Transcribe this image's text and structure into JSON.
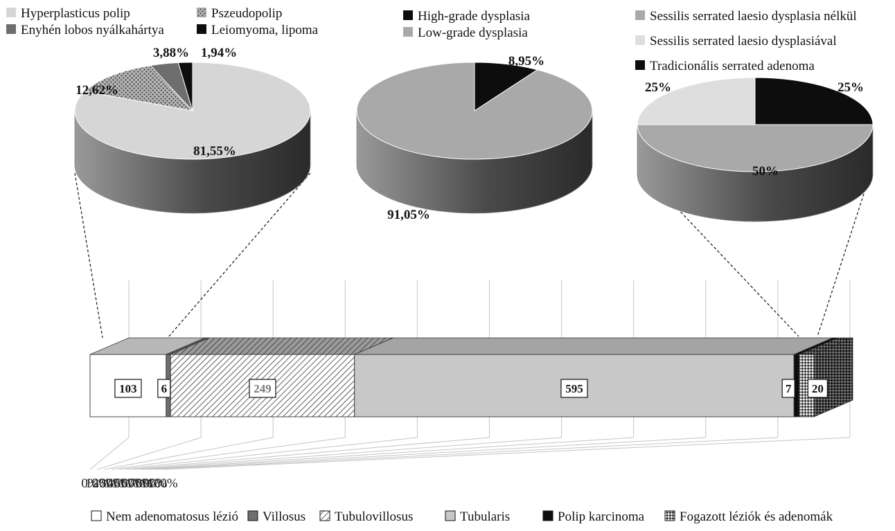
{
  "chart_data": [
    {
      "type": "pie",
      "legend": [
        {
          "name": "Hyperplasticus polip",
          "color": "#d6d6d6"
        },
        {
          "name": "Pszeudopolip",
          "color": "#8c8c8c",
          "pattern": "dots"
        },
        {
          "name": "Enyhén lobos nyálkahártya",
          "color": "#6e6e6e"
        },
        {
          "name": "Leiomyoma, lipoma",
          "color": "#0d0d0d"
        }
      ],
      "slices": [
        {
          "name": "Hyperplasticus polip",
          "value": 81.55,
          "label": "81,55%",
          "color": "#d6d6d6"
        },
        {
          "name": "Pszeudopolip",
          "value": 12.62,
          "label": "12,62%",
          "color": "#8c8c8c",
          "pattern": "dots"
        },
        {
          "name": "Enyhén lobos nyálkahártya",
          "value": 3.88,
          "label": "3,88%",
          "color": "#6e6e6e"
        },
        {
          "name": "Leiomyoma, lipoma",
          "value": 1.94,
          "label": "1,94%",
          "color": "#0d0d0d"
        }
      ]
    },
    {
      "type": "pie",
      "legend": [
        {
          "name": "High-grade dysplasia",
          "color": "#0d0d0d"
        },
        {
          "name": "Low-grade dysplasia",
          "color": "#a9a9a9"
        }
      ],
      "slices": [
        {
          "name": "High-grade dysplasia",
          "value": 8.95,
          "label": "8,95%",
          "color": "#0d0d0d"
        },
        {
          "name": "Low-grade dysplasia",
          "value": 91.05,
          "label": "91,05%",
          "color": "#a9a9a9"
        }
      ]
    },
    {
      "type": "pie",
      "legend": [
        {
          "name": "Sessilis serrated laesio dysplasia nélkül",
          "color": "#a9a9a9"
        },
        {
          "name": "Sessilis serrated laesio dysplasiával",
          "color": "#dedede"
        },
        {
          "name": "Tradicionális serrated adenoma",
          "color": "#0d0d0d"
        }
      ],
      "slices": [
        {
          "name": "Tradicionális serrated adenoma",
          "value": 25,
          "label": "25%",
          "color": "#0d0d0d"
        },
        {
          "name": "Sessilis serrated laesio dysplasia nélkül",
          "value": 50,
          "label": "50%",
          "color": "#a9a9a9"
        },
        {
          "name": "Sessilis serrated laesio dysplasiával",
          "value": 25,
          "label": "25%",
          "color": "#dedede"
        }
      ]
    },
    {
      "type": "bar",
      "orientation": "horizontal",
      "stacked": "100%",
      "x_ticks": [
        "0%",
        "10%",
        "20%",
        "30%",
        "40%",
        "50%",
        "60%",
        "70%",
        "80%",
        "90%",
        "100%"
      ],
      "xlim": [
        0,
        100
      ],
      "grid": true,
      "legend_position": "bottom",
      "series": [
        {
          "name": "Nem adenomatosus lézió",
          "value": 103,
          "label": "103",
          "color": "#ffffff",
          "pattern": "none"
        },
        {
          "name": "Villosus",
          "value": 6,
          "label": "6",
          "color": "#6e6e6e",
          "pattern": "none"
        },
        {
          "name": "Tubulovillosus",
          "value": 249,
          "label": "249",
          "color": "#ffffff",
          "pattern": "hatch"
        },
        {
          "name": "Tubularis",
          "value": 595,
          "label": "595",
          "color": "#c8c8c8",
          "pattern": "none"
        },
        {
          "name": "Polip karcinoma",
          "value": 7,
          "label": "7",
          "color": "#0d0d0d",
          "pattern": "none"
        },
        {
          "name": "Fogazott léziók és adenomák",
          "value": 20,
          "label": "20",
          "color": "#9a9a9a",
          "pattern": "checker"
        }
      ]
    }
  ]
}
